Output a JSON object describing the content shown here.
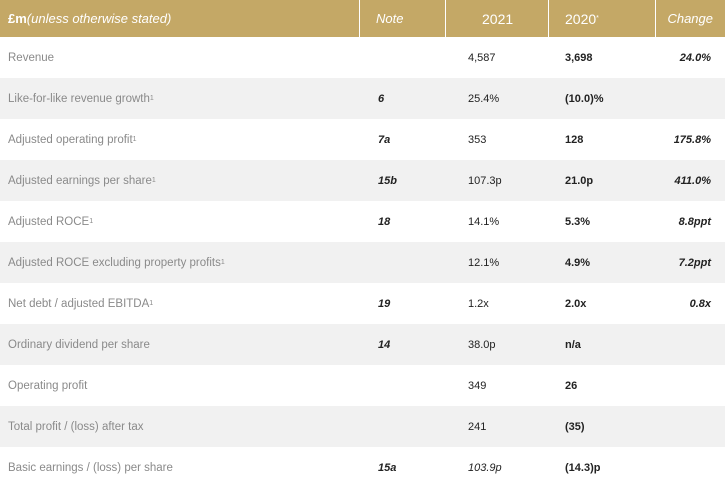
{
  "header": {
    "label_prefix": "£m",
    "label_suffix": " (unless otherwise stated)",
    "note": "Note",
    "y2021": "2021",
    "y2020": "2020",
    "y2020_mark": "*",
    "change": "Change"
  },
  "rows": [
    {
      "label": "Revenue",
      "sup": "",
      "note": "",
      "v2021": "4,587",
      "v2020": "3,698",
      "change": "24.0%"
    },
    {
      "label": "Like-for-like revenue growth",
      "sup": "1",
      "note": "6",
      "v2021": "25.4%",
      "v2020": "(10.0)%",
      "change": ""
    },
    {
      "label": "Adjusted operating profit",
      "sup": "1",
      "note": "7a",
      "v2021": "353",
      "v2020": "128",
      "change": "175.8%"
    },
    {
      "label": "Adjusted earnings per share",
      "sup": "1",
      "note": "15b",
      "v2021": "107.3p",
      "v2020": "21.0p",
      "change": "411.0%"
    },
    {
      "label": "Adjusted ROCE",
      "sup": "1",
      "note": "18",
      "v2021": "14.1%",
      "v2020": "5.3%",
      "change": "8.8ppt"
    },
    {
      "label": "Adjusted ROCE excluding property profits",
      "sup": "1",
      "note": "",
      "v2021": "12.1%",
      "v2020": "4.9%",
      "change": "7.2ppt"
    },
    {
      "label": "Net debt / adjusted EBITDA",
      "sup": "1",
      "note": "19",
      "v2021": "1.2x",
      "v2020": "2.0x",
      "change": "0.8x"
    },
    {
      "label": "Ordinary dividend per share",
      "sup": "",
      "note": "14",
      "v2021": "38.0p",
      "v2020": "n/a",
      "change": ""
    },
    {
      "label": "Operating profit",
      "sup": "",
      "note": "",
      "v2021": "349",
      "v2020": "26",
      "change": ""
    },
    {
      "label": "Total profit / (loss) after tax",
      "sup": "",
      "note": "",
      "v2021": "241",
      "v2020": "(35)",
      "change": ""
    },
    {
      "label": "Basic earnings / (loss) per share",
      "sup": "",
      "note": "15a",
      "v2021": "103.9p",
      "v2020": "(14.3)p",
      "change": ""
    }
  ]
}
